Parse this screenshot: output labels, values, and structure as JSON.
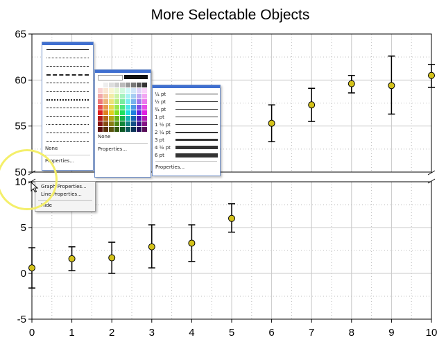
{
  "chart_data": {
    "type": "scatter",
    "title": "More Selectable Objects",
    "xlabel": "",
    "ylabel": "",
    "x": [
      0,
      1,
      2,
      3,
      4,
      5,
      6,
      7,
      8,
      9,
      10
    ],
    "y": [
      0.6,
      1.6,
      1.7,
      2.9,
      3.3,
      6.0,
      55.3,
      57.3,
      59.6,
      59.4,
      60.5
    ],
    "error_low": [
      -1.6,
      0.3,
      0.0,
      0.6,
      1.3,
      4.5,
      53.3,
      55.5,
      58.6,
      56.3,
      59.2
    ],
    "error_high": [
      2.8,
      2.9,
      3.4,
      5.3,
      5.3,
      7.6,
      57.3,
      59.1,
      60.5,
      62.6,
      61.7
    ],
    "xlim": [
      0,
      10
    ],
    "axis_break": true,
    "lower_segment": {
      "ylim": [
        -5,
        10
      ],
      "ticks": [
        "-5",
        "0",
        "5",
        "10"
      ]
    },
    "upper_segment": {
      "ylim": [
        50,
        65
      ],
      "ticks": [
        "50",
        "55",
        "60",
        "65"
      ]
    },
    "x_ticks": [
      "0",
      "1",
      "2",
      "3",
      "4",
      "5",
      "6",
      "7",
      "8",
      "9",
      "10"
    ],
    "grid": true,
    "marker_color": "#d4c21a",
    "marker_edge": "#000000"
  },
  "line_style_menu": {
    "none_label": "None",
    "properties_label": "Properties..."
  },
  "color_menu": {
    "none_label": "None",
    "properties_label": "Properties..."
  },
  "line_width_menu": {
    "items": [
      "¼ pt",
      "½ pt",
      "¾ pt",
      "1 pt",
      "1 ½ pt",
      "2 ¼ pt",
      "3 pt",
      "4 ½ pt",
      "6 pt"
    ],
    "properties_label": "Properties..."
  },
  "context_menu": {
    "graph_properties": "Graph Properties...",
    "line_properties": "Line Properties...",
    "hide": "Hide"
  },
  "accent_color": "#3f6fd0",
  "highlight_color": "#f4ef6a",
  "icons": [
    "mouse-cursor-icon"
  ]
}
